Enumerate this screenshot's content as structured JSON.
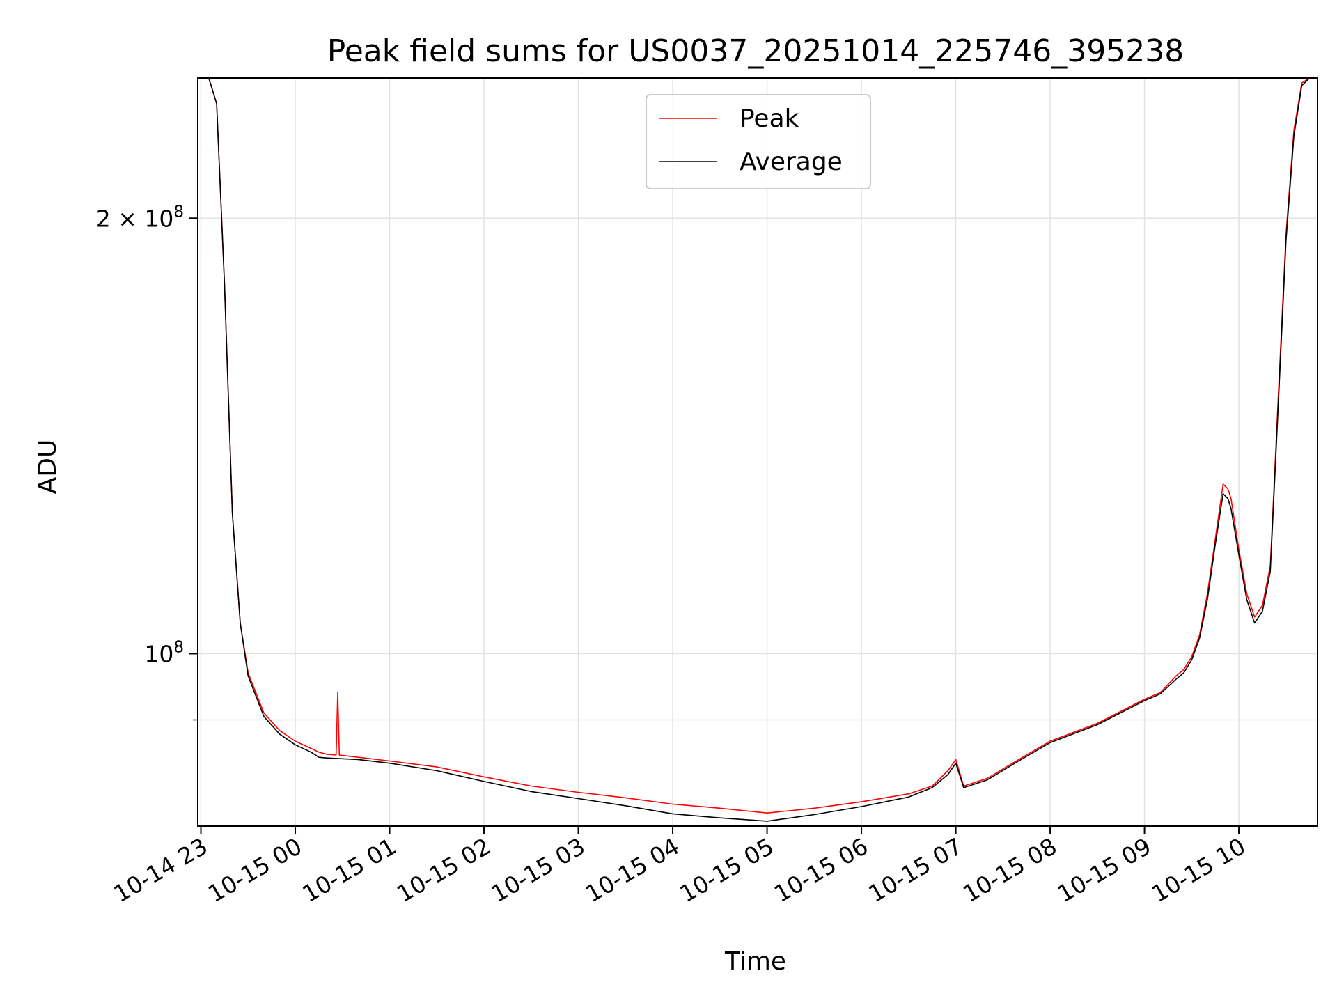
{
  "chart_data": {
    "type": "line",
    "title": "Peak field sums for US0037_20251014_225746_395238",
    "xlabel": "Time",
    "ylabel": "ADU",
    "x_range": [
      "2025-10-14 22:58",
      "2025-10-15 10:50"
    ],
    "yscale": "log",
    "ylim": [
      76000000,
      250000000
    ],
    "grid": true,
    "legend_position": "top-center",
    "x_ticks": [
      {
        "t": "2025-10-14 23:00",
        "label": "10-14 23"
      },
      {
        "t": "2025-10-15 00:00",
        "label": "10-15 00"
      },
      {
        "t": "2025-10-15 01:00",
        "label": "10-15 01"
      },
      {
        "t": "2025-10-15 02:00",
        "label": "10-15 02"
      },
      {
        "t": "2025-10-15 03:00",
        "label": "10-15 03"
      },
      {
        "t": "2025-10-15 04:00",
        "label": "10-15 04"
      },
      {
        "t": "2025-10-15 05:00",
        "label": "10-15 05"
      },
      {
        "t": "2025-10-15 06:00",
        "label": "10-15 06"
      },
      {
        "t": "2025-10-15 07:00",
        "label": "10-15 07"
      },
      {
        "t": "2025-10-15 08:00",
        "label": "10-15 08"
      },
      {
        "t": "2025-10-15 09:00",
        "label": "10-15 09"
      },
      {
        "t": "2025-10-15 10:00",
        "label": "10-15 10"
      }
    ],
    "y_ticks": [
      {
        "value": 100000000,
        "label_base": "10",
        "label_exp": "8"
      },
      {
        "value": 200000000,
        "label_base": "2 × 10",
        "label_exp": "8"
      }
    ],
    "y_minor_gridlines": [
      90000000
    ],
    "series": [
      {
        "name": "Peak",
        "color": "#ff0000",
        "x": [
          "2025-10-14 22:58",
          "2025-10-14 23:05",
          "2025-10-14 23:10",
          "2025-10-14 23:15",
          "2025-10-14 23:20",
          "2025-10-14 23:25",
          "2025-10-14 23:30",
          "2025-10-14 23:40",
          "2025-10-14 23:50",
          "2025-10-15 00:00",
          "2025-10-15 00:10",
          "2025-10-15 00:15",
          "2025-10-15 00:20",
          "2025-10-15 00:26",
          "2025-10-15 00:27",
          "2025-10-15 00:28",
          "2025-10-15 00:40",
          "2025-10-15 01:00",
          "2025-10-15 01:30",
          "2025-10-15 02:00",
          "2025-10-15 02:30",
          "2025-10-15 03:00",
          "2025-10-15 03:30",
          "2025-10-15 04:00",
          "2025-10-15 04:30",
          "2025-10-15 05:00",
          "2025-10-15 05:30",
          "2025-10-15 06:00",
          "2025-10-15 06:30",
          "2025-10-15 06:45",
          "2025-10-15 06:55",
          "2025-10-15 07:00",
          "2025-10-15 07:05",
          "2025-10-15 07:20",
          "2025-10-15 07:40",
          "2025-10-15 08:00",
          "2025-10-15 08:30",
          "2025-10-15 09:00",
          "2025-10-15 09:10",
          "2025-10-15 09:20",
          "2025-10-15 09:25",
          "2025-10-15 09:30",
          "2025-10-15 09:35",
          "2025-10-15 09:40",
          "2025-10-15 09:45",
          "2025-10-15 09:50",
          "2025-10-15 09:53",
          "2025-10-15 09:55",
          "2025-10-15 10:00",
          "2025-10-15 10:05",
          "2025-10-15 10:10",
          "2025-10-15 10:15",
          "2025-10-15 10:20",
          "2025-10-15 10:25",
          "2025-10-15 10:30",
          "2025-10-15 10:35",
          "2025-10-15 10:40",
          "2025-10-15 10:45",
          "2025-10-15 10:50"
        ],
        "y": [
          250000000,
          250000000,
          240000000,
          180000000,
          125000000,
          105000000,
          97000000,
          91000000,
          88500000,
          87000000,
          86000000,
          85500000,
          85200000,
          85100000,
          94000000,
          85100000,
          84800000,
          84300000,
          83500000,
          82200000,
          81000000,
          80200000,
          79500000,
          78700000,
          78200000,
          77600000,
          78200000,
          79000000,
          80000000,
          81000000,
          83000000,
          84500000,
          81000000,
          82000000,
          84500000,
          87000000,
          89500000,
          93000000,
          94000000,
          96500000,
          97500000,
          99500000,
          103000000,
          110000000,
          120000000,
          131000000,
          130000000,
          128000000,
          118000000,
          110000000,
          106000000,
          108000000,
          115000000,
          150000000,
          195000000,
          230000000,
          248000000,
          250000000,
          250000000
        ]
      },
      {
        "name": "Average",
        "color": "#000000",
        "x": [
          "2025-10-14 22:58",
          "2025-10-14 23:05",
          "2025-10-14 23:10",
          "2025-10-14 23:15",
          "2025-10-14 23:20",
          "2025-10-14 23:25",
          "2025-10-14 23:30",
          "2025-10-14 23:40",
          "2025-10-14 23:50",
          "2025-10-15 00:00",
          "2025-10-15 00:10",
          "2025-10-15 00:15",
          "2025-10-15 00:20",
          "2025-10-15 00:40",
          "2025-10-15 01:00",
          "2025-10-15 01:30",
          "2025-10-15 02:00",
          "2025-10-15 02:30",
          "2025-10-15 03:00",
          "2025-10-15 03:30",
          "2025-10-15 04:00",
          "2025-10-15 04:30",
          "2025-10-15 05:00",
          "2025-10-15 05:30",
          "2025-10-15 06:00",
          "2025-10-15 06:30",
          "2025-10-15 06:45",
          "2025-10-15 06:55",
          "2025-10-15 07:00",
          "2025-10-15 07:05",
          "2025-10-15 07:20",
          "2025-10-15 07:40",
          "2025-10-15 08:00",
          "2025-10-15 08:30",
          "2025-10-15 09:00",
          "2025-10-15 09:10",
          "2025-10-15 09:20",
          "2025-10-15 09:25",
          "2025-10-15 09:30",
          "2025-10-15 09:35",
          "2025-10-15 09:40",
          "2025-10-15 09:45",
          "2025-10-15 09:50",
          "2025-10-15 09:53",
          "2025-10-15 09:55",
          "2025-10-15 10:00",
          "2025-10-15 10:05",
          "2025-10-15 10:10",
          "2025-10-15 10:15",
          "2025-10-15 10:20",
          "2025-10-15 10:25",
          "2025-10-15 10:30",
          "2025-10-15 10:35",
          "2025-10-15 10:40",
          "2025-10-15 10:45",
          "2025-10-15 10:50"
        ],
        "y": [
          250000000,
          250000000,
          240000000,
          180000000,
          125000000,
          105000000,
          96500000,
          90500000,
          88000000,
          86500000,
          85500000,
          84800000,
          84700000,
          84500000,
          84000000,
          83000000,
          81600000,
          80300000,
          79400000,
          78500000,
          77500000,
          77000000,
          76600000,
          77400000,
          78400000,
          79600000,
          80800000,
          82500000,
          84000000,
          80800000,
          81800000,
          84300000,
          86800000,
          89300000,
          92800000,
          93800000,
          96000000,
          97000000,
          99000000,
          102500000,
          109000000,
          119000000,
          129000000,
          128000000,
          126000000,
          117000000,
          109000000,
          105000000,
          107000000,
          114000000,
          148000000,
          193000000,
          228000000,
          247000000,
          250000000,
          250000000
        ]
      }
    ]
  }
}
